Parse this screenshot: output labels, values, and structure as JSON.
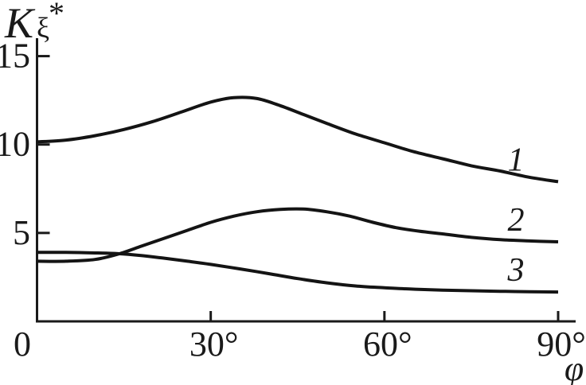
{
  "figure": {
    "ylabel_base": "K",
    "ylabel_sub": "ξ",
    "ylabel_sup": "*",
    "xlabel": "φ"
  },
  "chart_data": {
    "type": "line",
    "title": "",
    "xlabel": "φ",
    "ylabel": "K_ξ*",
    "x_unit": "degrees",
    "xlim": [
      0,
      90
    ],
    "ylim": [
      0,
      16.2
    ],
    "grid": false,
    "legend_position": "inline-right-of-curves",
    "axis_color": "#1a1a1a",
    "curve_color": "#141414",
    "background_color": "#ffffff",
    "x_ticks": [
      {
        "value": 0,
        "label": "0"
      },
      {
        "value": 30,
        "label": "30°"
      },
      {
        "value": 60,
        "label": "60°"
      },
      {
        "value": 90,
        "label": "90°"
      }
    ],
    "y_ticks": [
      {
        "value": 5,
        "label": "5"
      },
      {
        "value": 10,
        "label": "10"
      },
      {
        "value": 15,
        "label": "15"
      }
    ],
    "series": [
      {
        "name": "1",
        "x": [
          0,
          5,
          10,
          15,
          20,
          25,
          30,
          34,
          38,
          42,
          46,
          50,
          55,
          60,
          65,
          70,
          75,
          80,
          85,
          90
        ],
        "y": [
          10.15,
          10.25,
          10.5,
          10.85,
          11.3,
          11.85,
          12.4,
          12.65,
          12.6,
          12.2,
          11.7,
          11.2,
          10.6,
          10.1,
          9.6,
          9.2,
          8.8,
          8.5,
          8.15,
          7.9
        ]
      },
      {
        "name": "2",
        "x": [
          0,
          5,
          10,
          14,
          18,
          22,
          26,
          30,
          34,
          38,
          42,
          46,
          50,
          54,
          58,
          62,
          66,
          70,
          75,
          80,
          85,
          90
        ],
        "y": [
          3.4,
          3.4,
          3.5,
          3.8,
          4.25,
          4.7,
          5.15,
          5.6,
          5.95,
          6.2,
          6.33,
          6.35,
          6.2,
          5.95,
          5.6,
          5.3,
          5.1,
          4.95,
          4.75,
          4.62,
          4.55,
          4.5
        ]
      },
      {
        "name": "3",
        "x": [
          0,
          5,
          10,
          14,
          18,
          22,
          26,
          30,
          35,
          40,
          45,
          50,
          55,
          60,
          65,
          70,
          75,
          80,
          85,
          90
        ],
        "y": [
          3.9,
          3.9,
          3.87,
          3.83,
          3.72,
          3.57,
          3.4,
          3.22,
          2.97,
          2.7,
          2.42,
          2.18,
          2.0,
          1.9,
          1.82,
          1.77,
          1.73,
          1.7,
          1.68,
          1.66
        ]
      }
    ]
  }
}
